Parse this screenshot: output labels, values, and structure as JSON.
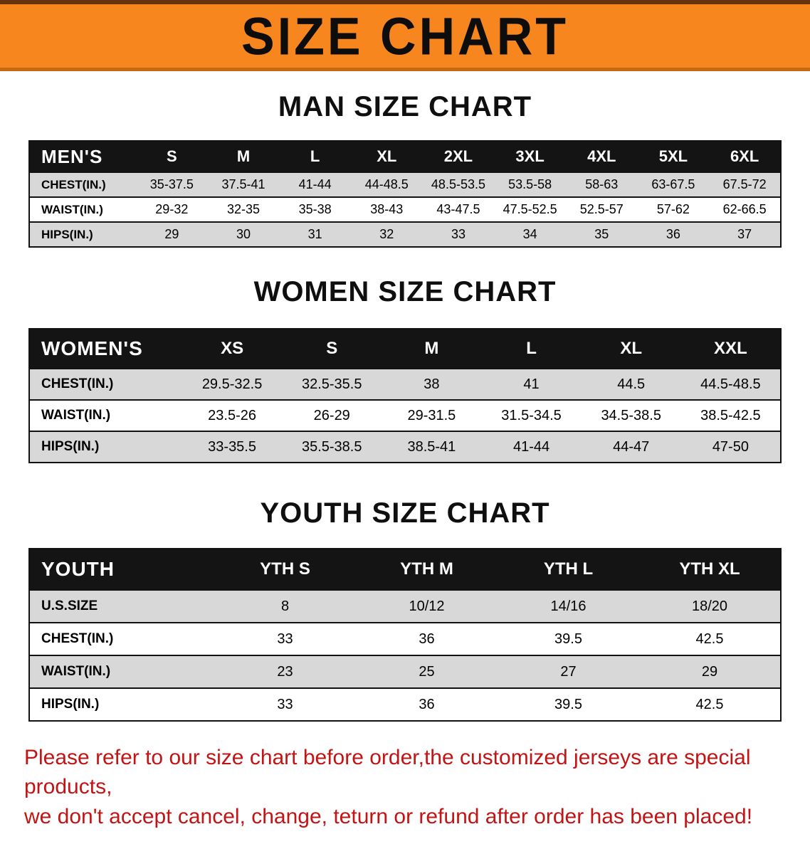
{
  "banner": {
    "title": "SIZE CHART",
    "bg_color": "#f6861d"
  },
  "sections": [
    {
      "id": "men",
      "heading": "MAN SIZE CHART",
      "corner_label": "MEN'S",
      "columns": [
        "S",
        "M",
        "L",
        "XL",
        "2XL",
        "3XL",
        "4XL",
        "5XL",
        "6XL"
      ],
      "rows": [
        {
          "label": "CHEST(IN.)",
          "values": [
            "35-37.5",
            "37.5-41",
            "41-44",
            "44-48.5",
            "48.5-53.5",
            "53.5-58",
            "58-63",
            "63-67.5",
            "67.5-72"
          ]
        },
        {
          "label": "WAIST(IN.)",
          "values": [
            "29-32",
            "32-35",
            "35-38",
            "38-43",
            "43-47.5",
            "47.5-52.5",
            "52.5-57",
            "57-62",
            "62-66.5"
          ]
        },
        {
          "label": "HIPS(IN.)",
          "values": [
            "29",
            "30",
            "31",
            "32",
            "33",
            "34",
            "35",
            "36",
            "37"
          ]
        }
      ]
    },
    {
      "id": "women",
      "heading": "WOMEN SIZE CHART",
      "corner_label": "WOMEN'S",
      "columns": [
        "XS",
        "S",
        "M",
        "L",
        "XL",
        "XXL"
      ],
      "rows": [
        {
          "label": "CHEST(IN.)",
          "values": [
            "29.5-32.5",
            "32.5-35.5",
            "38",
            "41",
            "44.5",
            "44.5-48.5"
          ]
        },
        {
          "label": "WAIST(IN.)",
          "values": [
            "23.5-26",
            "26-29",
            "29-31.5",
            "31.5-34.5",
            "34.5-38.5",
            "38.5-42.5"
          ]
        },
        {
          "label": "HIPS(IN.)",
          "values": [
            "33-35.5",
            "35.5-38.5",
            "38.5-41",
            "41-44",
            "44-47",
            "47-50"
          ]
        }
      ]
    },
    {
      "id": "youth",
      "heading": "YOUTH SIZE CHART",
      "corner_label": "YOUTH",
      "columns": [
        "YTH S",
        "YTH M",
        "YTH L",
        "YTH XL"
      ],
      "rows": [
        {
          "label": "U.S.SIZE",
          "values": [
            "8",
            "10/12",
            "14/16",
            "18/20"
          ]
        },
        {
          "label": "CHEST(IN.)",
          "values": [
            "33",
            "36",
            "39.5",
            "42.5"
          ]
        },
        {
          "label": "WAIST(IN.)",
          "values": [
            "23",
            "25",
            "27",
            "29"
          ]
        },
        {
          "label": "HIPS(IN.)",
          "values": [
            "33",
            "36",
            "39.5",
            "42.5"
          ]
        }
      ]
    }
  ],
  "footer": {
    "line1": "Please refer to our size chart before order,the customized jerseys are special products,",
    "line2": "we don't accept cancel, change, teturn or refund after order has been placed!",
    "text_color": "#c21414"
  }
}
